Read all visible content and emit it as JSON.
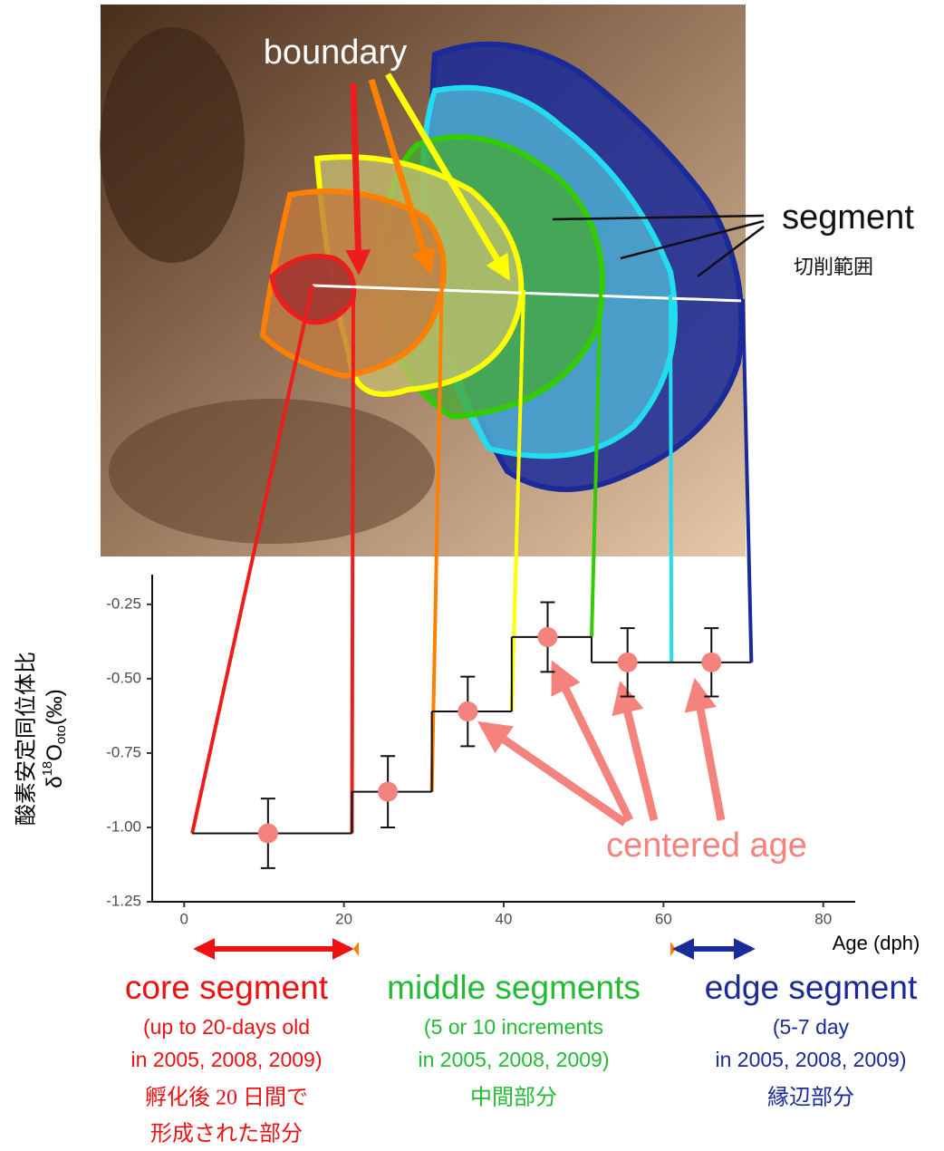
{
  "chart_data": {
    "type": "step-scatter",
    "annotations": {
      "boundary": "boundary",
      "segment": "segment",
      "segment_jp": "切削範囲",
      "centered_age": "centered age"
    },
    "y_label_jp": "酸素安定同位体比",
    "y_label_parts": [
      "δ",
      "18",
      "O",
      "oto",
      "(‰)"
    ],
    "x_label": "Age (dph)",
    "xlim": [
      -4,
      84
    ],
    "xticks": [
      0,
      20,
      40,
      60,
      80
    ],
    "ylim": [
      -1.25,
      -0.15
    ],
    "yticks": [
      {
        "value": -1.25,
        "label": "-1.25"
      },
      {
        "value": -1.0,
        "label": "-1.00"
      },
      {
        "value": -0.75,
        "label": "-0.75"
      },
      {
        "value": -0.5,
        "label": "-0.50"
      },
      {
        "value": -0.25,
        "label": "-0.25"
      }
    ],
    "segment_edges": [
      1,
      21,
      31,
      41,
      51,
      61,
      71
    ],
    "edge_colors": [
      "#ee1c1c",
      "#ee1c1c",
      "#ff8000",
      "#ffff00",
      "#33cc00",
      "#22ddee",
      "#1a2a99"
    ],
    "series": [
      {
        "color": "#f4837d",
        "x": [
          10.5,
          25.5,
          35.5,
          45.5,
          55.5,
          66
        ],
        "values": [
          -1.02,
          -0.88,
          -0.61,
          -0.36,
          -0.445,
          -0.445
        ],
        "errors": [
          0.117,
          0.12,
          0.117,
          0.117,
          0.115,
          0.115
        ]
      }
    ],
    "groups": [
      {
        "title": "core segment",
        "color": "#ee1111",
        "lines": [
          "(up to 20-days old",
          "in 2005, 2008, 2009)"
        ],
        "jp": [
          "孵化後 20 日間で",
          "形成された部分"
        ]
      },
      {
        "title": "middle segments",
        "color": "#22bb33",
        "lines": [
          "(5 or 10 increments",
          "in 2005, 2008, 2009)"
        ],
        "jp": [
          "中間部分"
        ]
      },
      {
        "title": "edge segment",
        "color": "#1a2a99",
        "lines": [
          "(5-7 day",
          "in 2005, 2008, 2009)"
        ],
        "jp": [
          "縁辺部分"
        ]
      }
    ]
  }
}
